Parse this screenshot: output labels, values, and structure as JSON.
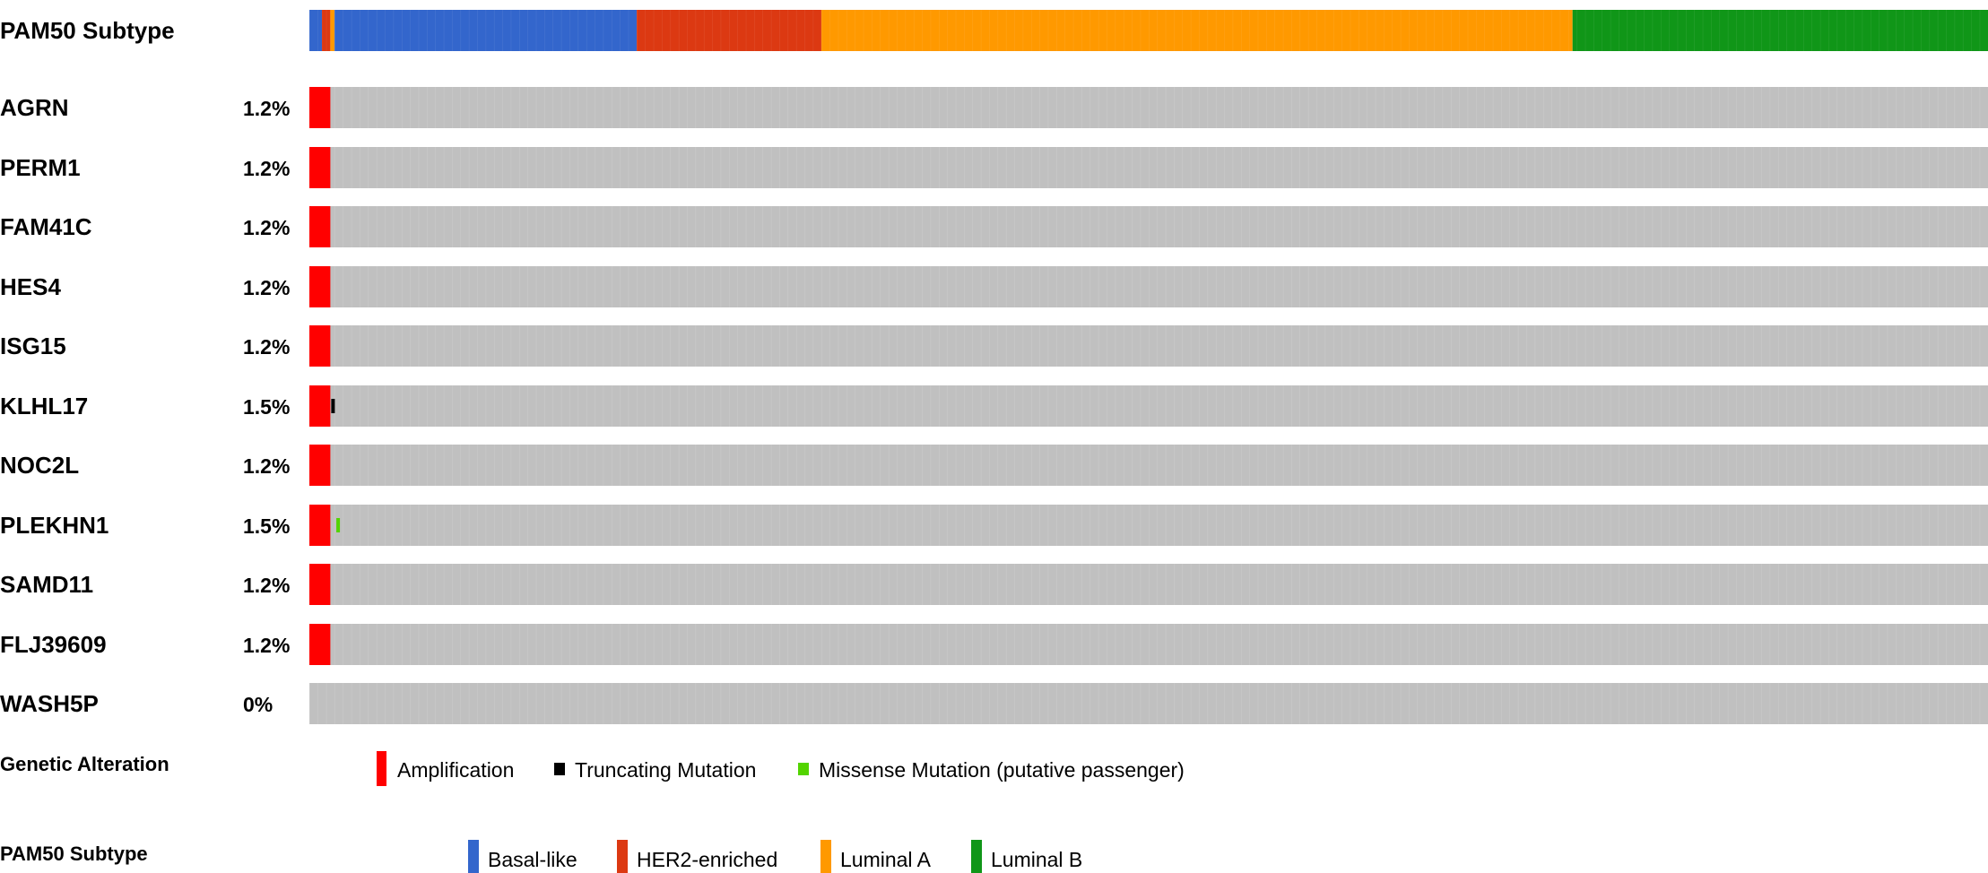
{
  "chart_data": {
    "type": "oncoprint",
    "track_title": "PAM50 Subtype",
    "n_samples": 400,
    "subtype_track": {
      "label": "PAM50 Subtype",
      "segments": [
        {
          "subtype": "Basal-like",
          "count": 3
        },
        {
          "subtype": "HER2-enriched",
          "count": 2
        },
        {
          "subtype": "Luminal A",
          "count": 1
        },
        {
          "subtype": "Basal-like",
          "count": 72
        },
        {
          "subtype": "HER2-enriched",
          "count": 44
        },
        {
          "subtype": "Luminal A",
          "count": 179
        },
        {
          "subtype": "Luminal B",
          "count": 99
        }
      ]
    },
    "genes": [
      {
        "name": "AGRN",
        "percent": "1.2%",
        "alterations": [
          {
            "type": "Amplification",
            "start": 0,
            "count": 5
          }
        ]
      },
      {
        "name": "PERM1",
        "percent": "1.2%",
        "alterations": [
          {
            "type": "Amplification",
            "start": 0,
            "count": 5
          }
        ]
      },
      {
        "name": "FAM41C",
        "percent": "1.2%",
        "alterations": [
          {
            "type": "Amplification",
            "start": 0,
            "count": 5
          }
        ]
      },
      {
        "name": "HES4",
        "percent": "1.2%",
        "alterations": [
          {
            "type": "Amplification",
            "start": 0,
            "count": 5
          }
        ]
      },
      {
        "name": "ISG15",
        "percent": "1.2%",
        "alterations": [
          {
            "type": "Amplification",
            "start": 0,
            "count": 5
          }
        ]
      },
      {
        "name": "KLHL17",
        "percent": "1.5%",
        "alterations": [
          {
            "type": "Amplification",
            "start": 0,
            "count": 5
          },
          {
            "type": "Truncating Mutation",
            "start": 5,
            "count": 1
          }
        ]
      },
      {
        "name": "NOC2L",
        "percent": "1.2%",
        "alterations": [
          {
            "type": "Amplification",
            "start": 0,
            "count": 5
          }
        ]
      },
      {
        "name": "PLEKHN1",
        "percent": "1.5%",
        "alterations": [
          {
            "type": "Amplification",
            "start": 0,
            "count": 5
          },
          {
            "type": "Missense Mutation (putative passenger)",
            "start": 6,
            "count": 1
          }
        ]
      },
      {
        "name": "SAMD11",
        "percent": "1.2%",
        "alterations": [
          {
            "type": "Amplification",
            "start": 0,
            "count": 5
          }
        ]
      },
      {
        "name": "FLJ39609",
        "percent": "1.2%",
        "alterations": [
          {
            "type": "Amplification",
            "start": 0,
            "count": 5
          }
        ]
      },
      {
        "name": "WASH5P",
        "percent": "0%",
        "alterations": []
      }
    ],
    "legend_alterations": {
      "title": "Genetic Alteration",
      "items": [
        {
          "label": "Amplification",
          "color": "#ff0000",
          "shape": "tall"
        },
        {
          "label": "Truncating Mutation",
          "color": "#000000",
          "shape": "small"
        },
        {
          "label": "Missense Mutation (putative passenger)",
          "color": "#53d400",
          "shape": "small"
        }
      ]
    },
    "legend_subtypes": {
      "title": "PAM50 Subtype",
      "items": [
        {
          "label": "Basal-like",
          "color": "#3366cc"
        },
        {
          "label": "HER2-enriched",
          "color": "#dc3912"
        },
        {
          "label": "Luminal A",
          "color": "#ff9900"
        },
        {
          "label": "Luminal B",
          "color": "#109618"
        }
      ]
    }
  },
  "colors": {
    "unaltered": "#c0c0c0",
    "Basal-like": "#3366cc",
    "HER2-enriched": "#dc3912",
    "Luminal A": "#ff9900",
    "Luminal B": "#109618",
    "Amplification": "#ff0000",
    "Truncating Mutation": "#000000",
    "Missense Mutation (putative passenger)": "#53d400"
  }
}
